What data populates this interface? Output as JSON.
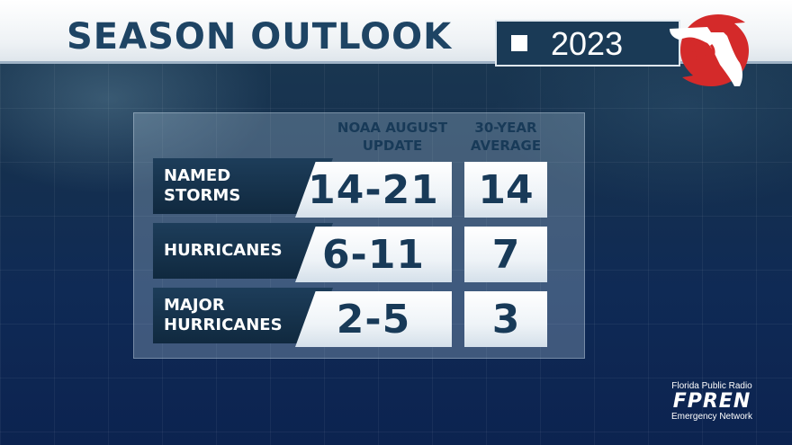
{
  "header": {
    "title": "SEASON OUTLOOK",
    "year": "2023"
  },
  "table": {
    "column_headers": {
      "noaa": [
        "NOAA AUGUST",
        "UPDATE"
      ],
      "average": [
        "30-YEAR",
        "AVERAGE"
      ]
    },
    "rows": [
      {
        "label": [
          "NAMED",
          "STORMS"
        ],
        "noaa": "14-21",
        "average": "14"
      },
      {
        "label": [
          "HURRICANES"
        ],
        "noaa": "6-11",
        "average": "7"
      },
      {
        "label": [
          "MAJOR",
          "HURRICANES"
        ],
        "noaa": "2-5",
        "average": "3"
      }
    ]
  },
  "branding": {
    "top": "Florida Public Radio",
    "name": "FPREN",
    "bottom": "Emergency Network"
  },
  "colors": {
    "title_navy": "#1e4464",
    "logo_red": "#d42a2a",
    "label_bg": "#10293f"
  },
  "icons": {
    "logo": "florida-hurricane-radar-icon"
  }
}
